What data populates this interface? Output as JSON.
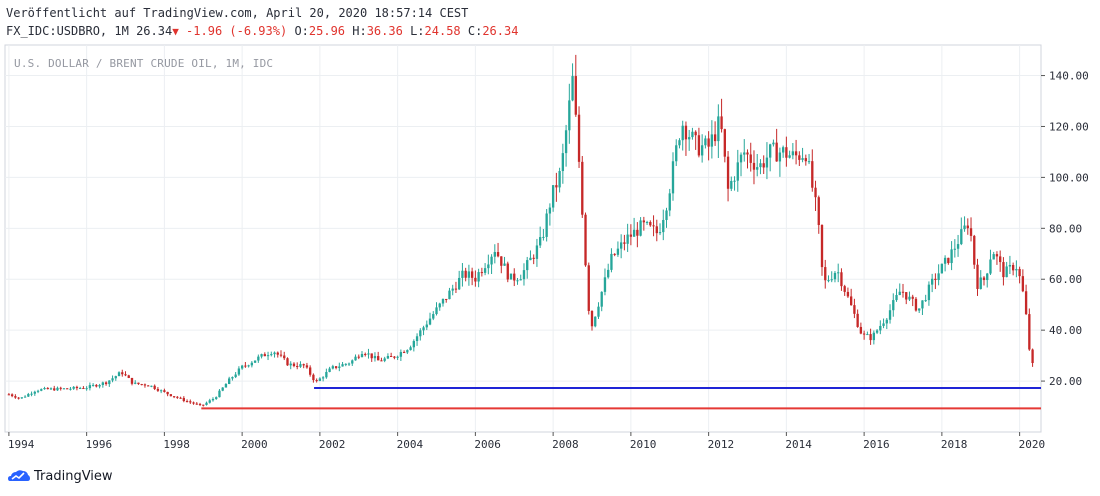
{
  "header": {
    "published": "Veröffentlicht auf TradingView.com, April 20, 2020 18:57:14 CEST",
    "symbol": "FX_IDC:USDBRO, 1M",
    "last": "26.34",
    "arrow": "▼",
    "change": "-1.96 (-6.93%)",
    "open_label": "O:",
    "open": "25.96",
    "high_label": "H:",
    "high": "36.36",
    "low_label": "L:",
    "low": "24.58",
    "close_label": "C:",
    "close": "26.34"
  },
  "footer": {
    "brand": "TradingView"
  },
  "colors": {
    "up": "#26a69a",
    "down": "#c62828",
    "blue_line": "#1f25d6",
    "red_line": "#e53935",
    "grid": "#eceff2"
  },
  "chart_data": {
    "type": "candlestick",
    "title": "U.S. DOLLAR / BRENT CRUDE OIL, 1M, IDC",
    "xlabel": "",
    "ylabel": "",
    "xlim": [
      1993.9,
      2020.55
    ],
    "ylim": [
      0,
      152
    ],
    "y_ticks": [
      "20.00",
      "40.00",
      "60.00",
      "80.00",
      "100.00",
      "120.00",
      "140.00"
    ],
    "y_tick_values": [
      20,
      40,
      60,
      80,
      100,
      120,
      140
    ],
    "x_ticks": [
      "1994",
      "1996",
      "1998",
      "2000",
      "2002",
      "2004",
      "2006",
      "2008",
      "2010",
      "2012",
      "2014",
      "2016",
      "2018",
      "2020"
    ],
    "x_tick_values": [
      1994,
      1996,
      1998,
      2000,
      2002,
      2004,
      2006,
      2008,
      2010,
      2012,
      2014,
      2016,
      2018,
      2020
    ],
    "grid": true,
    "last_price_label": "26.34",
    "approx_close_path": [
      [
        1994.0,
        14.8
      ],
      [
        1994.3,
        13.2
      ],
      [
        1994.7,
        16.5
      ],
      [
        1995.0,
        16.8
      ],
      [
        1995.5,
        17.0
      ],
      [
        1996.0,
        17.5
      ],
      [
        1996.5,
        19.5
      ],
      [
        1996.9,
        23.5
      ],
      [
        1997.2,
        19.0
      ],
      [
        1997.6,
        18.5
      ],
      [
        1998.0,
        15.5
      ],
      [
        1998.5,
        12.5
      ],
      [
        1998.95,
        10.2
      ],
      [
        1999.3,
        13.5
      ],
      [
        1999.7,
        21.0
      ],
      [
        2000.0,
        25.5
      ],
      [
        2000.4,
        29.0
      ],
      [
        2000.8,
        32.0
      ],
      [
        2001.2,
        26.5
      ],
      [
        2001.6,
        26.0
      ],
      [
        2001.9,
        19.5
      ],
      [
        2002.3,
        25.0
      ],
      [
        2002.8,
        27.5
      ],
      [
        2003.1,
        32.0
      ],
      [
        2003.5,
        28.0
      ],
      [
        2003.9,
        29.5
      ],
      [
        2004.3,
        33.5
      ],
      [
        2004.8,
        44.0
      ],
      [
        2005.2,
        52.0
      ],
      [
        2005.7,
        62.0
      ],
      [
        2006.0,
        60.5
      ],
      [
        2006.5,
        72.0
      ],
      [
        2006.9,
        60.0
      ],
      [
        2007.2,
        62.0
      ],
      [
        2007.7,
        75.0
      ],
      [
        2007.95,
        92.0
      ],
      [
        2008.2,
        102.0
      ],
      [
        2008.5,
        138.0
      ],
      [
        2008.7,
        100.0
      ],
      [
        2008.9,
        50.0
      ],
      [
        2009.0,
        42.0
      ],
      [
        2009.5,
        68.0
      ],
      [
        2009.9,
        76.0
      ],
      [
        2010.3,
        81.0
      ],
      [
        2010.7,
        78.0
      ],
      [
        2010.95,
        92.0
      ],
      [
        2011.3,
        122.0
      ],
      [
        2011.7,
        112.0
      ],
      [
        2012.0,
        112.0
      ],
      [
        2012.3,
        122.0
      ],
      [
        2012.5,
        95.0
      ],
      [
        2012.9,
        110.0
      ],
      [
        2013.3,
        104.0
      ],
      [
        2013.6,
        110.0
      ],
      [
        2013.9,
        110.0
      ],
      [
        2014.2,
        108.0
      ],
      [
        2014.5,
        110.0
      ],
      [
        2014.8,
        85.0
      ],
      [
        2014.95,
        58.0
      ],
      [
        2015.3,
        64.0
      ],
      [
        2015.7,
        48.0
      ],
      [
        2015.95,
        38.0
      ],
      [
        2016.2,
        37.0
      ],
      [
        2016.6,
        46.0
      ],
      [
        2016.95,
        56.0
      ],
      [
        2017.4,
        48.0
      ],
      [
        2017.8,
        60.0
      ],
      [
        2018.2,
        69.0
      ],
      [
        2018.7,
        83.0
      ],
      [
        2018.9,
        58.0
      ],
      [
        2019.1,
        60.0
      ],
      [
        2019.3,
        72.0
      ],
      [
        2019.6,
        62.0
      ],
      [
        2019.9,
        66.0
      ],
      [
        2020.05,
        58.0
      ],
      [
        2020.15,
        48.0
      ],
      [
        2020.3,
        25.0
      ],
      [
        2020.33,
        26.34
      ]
    ],
    "lines": [
      {
        "name": "",
        "color": "#1f25d6",
        "x": [
          2001.85,
          2020.55
        ],
        "y": [
          17.3,
          17.3
        ]
      },
      {
        "name": "",
        "color": "#e53935",
        "x": [
          1998.95,
          2020.55
        ],
        "y": [
          9.3,
          9.3
        ]
      }
    ]
  }
}
